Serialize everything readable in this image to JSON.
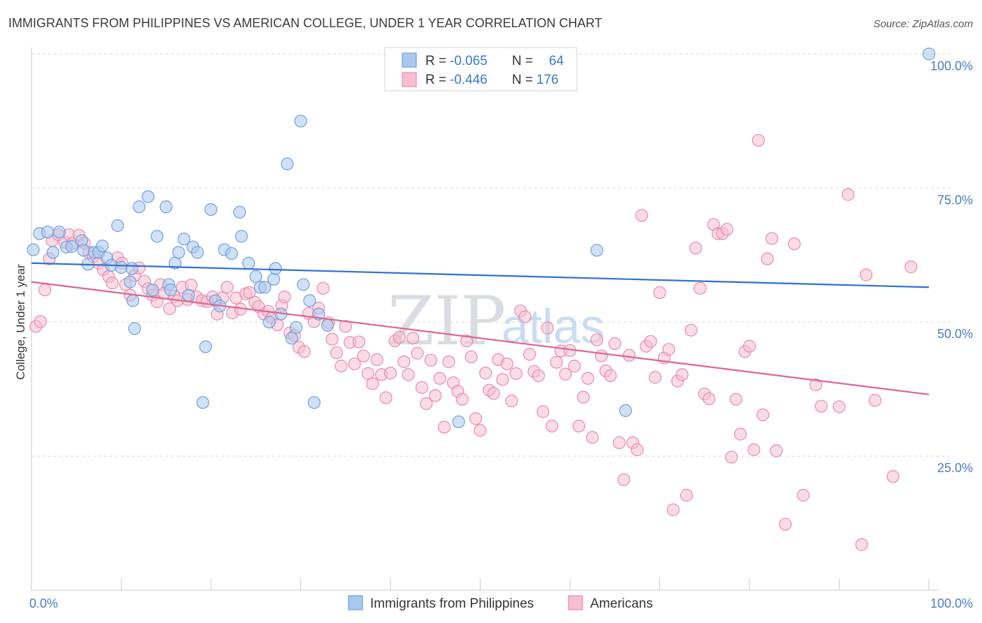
{
  "title": "IMMIGRANTS FROM PHILIPPINES VS AMERICAN COLLEGE, UNDER 1 YEAR CORRELATION CHART",
  "source": "Source: ZipAtlas.com",
  "watermark": {
    "zip": "ZIP",
    "atlas": "atlas"
  },
  "legend_box": {
    "rows": [
      {
        "r_label": "R = ",
        "r_value": "-0.065",
        "n_label": "N = ",
        "n_value": "64"
      },
      {
        "r_label": "R = ",
        "r_value": "-0.446",
        "n_label": "N = ",
        "n_value": "176"
      }
    ]
  },
  "bottom_legend": {
    "items": [
      "Immigrants from Philippines",
      "Americans"
    ]
  },
  "colors": {
    "blue_fill": "#a9c8ee",
    "blue_stroke": "#6f9fdc",
    "blue_line": "#2f6fd0",
    "pink_fill": "#f6bfd0",
    "pink_stroke": "#e98aaa",
    "pink_line": "#e0638f",
    "grid": "#d5d8de",
    "axis_text": "#4a7cc7"
  },
  "chart_data": {
    "type": "scatter",
    "title": "IMMIGRANTS FROM PHILIPPINES VS AMERICAN COLLEGE, UNDER 1 YEAR CORRELATION CHART",
    "xlabel": "",
    "ylabel": "College, Under 1 year",
    "xlim": [
      0,
      100
    ],
    "ylim": [
      0,
      102
    ],
    "x_tick_labels": [
      "0.0%",
      "100.0%"
    ],
    "y_ticks": [
      25,
      50,
      75,
      100
    ],
    "y_tick_labels": [
      "25.0%",
      "50.0%",
      "75.0%",
      "100.0%"
    ],
    "grid": "horizontal dashed",
    "legend_placement": "top-center",
    "series": [
      {
        "name": "Immigrants from Philippines",
        "R": -0.065,
        "N": 64,
        "trend": {
          "x0": 0,
          "y0": 61.0,
          "x1": 100,
          "y1": 56.5
        },
        "points": [
          [
            0.2,
            63.5
          ],
          [
            0.9,
            66.5
          ],
          [
            1.8,
            66.8
          ],
          [
            2.4,
            63
          ],
          [
            3.1,
            66.8
          ],
          [
            3.9,
            64
          ],
          [
            4.5,
            64.1
          ],
          [
            5.6,
            65.2
          ],
          [
            5.8,
            63.4
          ],
          [
            6.3,
            60.8
          ],
          [
            7.0,
            63
          ],
          [
            7.5,
            63
          ],
          [
            7.9,
            64.2
          ],
          [
            8.4,
            62
          ],
          [
            8.9,
            60.6
          ],
          [
            9.6,
            68
          ],
          [
            10,
            60.2
          ],
          [
            11,
            57.5
          ],
          [
            11.2,
            60
          ],
          [
            11.3,
            54
          ],
          [
            11.5,
            48.8
          ],
          [
            12,
            71.5
          ],
          [
            13,
            73.4
          ],
          [
            13.5,
            56
          ],
          [
            14,
            66
          ],
          [
            15,
            71.5
          ],
          [
            15.3,
            57
          ],
          [
            15.5,
            56
          ],
          [
            16,
            61
          ],
          [
            16.4,
            63
          ],
          [
            17,
            65.5
          ],
          [
            17.5,
            55
          ],
          [
            18,
            64
          ],
          [
            18.5,
            63
          ],
          [
            19.1,
            35
          ],
          [
            19.4,
            45.4
          ],
          [
            20,
            71
          ],
          [
            20.5,
            54
          ],
          [
            21,
            53
          ],
          [
            21.5,
            63.5
          ],
          [
            22.3,
            62.8
          ],
          [
            23.2,
            70.5
          ],
          [
            23.4,
            66
          ],
          [
            24.2,
            61
          ],
          [
            25,
            58.5
          ],
          [
            25.5,
            56.5
          ],
          [
            26,
            56.5
          ],
          [
            26.5,
            50
          ],
          [
            27,
            58
          ],
          [
            27.2,
            60
          ],
          [
            27.8,
            51.5
          ],
          [
            28.5,
            79.5
          ],
          [
            29,
            47
          ],
          [
            29.5,
            49
          ],
          [
            30,
            87.5
          ],
          [
            30.3,
            57
          ],
          [
            31,
            54
          ],
          [
            31.5,
            35
          ],
          [
            32,
            51.5
          ],
          [
            33,
            49.4
          ],
          [
            47.6,
            31.4
          ],
          [
            63,
            63.4
          ],
          [
            66.2,
            33.5
          ],
          [
            100,
            100
          ]
        ]
      },
      {
        "name": "Americans",
        "R": -0.446,
        "N": 176,
        "trend": {
          "x0": 0,
          "y0": 57.5,
          "x1": 100,
          "y1": 36.5
        },
        "points": [
          [
            0.5,
            49.2
          ],
          [
            1,
            50.1
          ],
          [
            1.5,
            56
          ],
          [
            2,
            61.8
          ],
          [
            2.3,
            65.2
          ],
          [
            3,
            66.3
          ],
          [
            3.7,
            64.9
          ],
          [
            4.2,
            66.3
          ],
          [
            4.6,
            64.7
          ],
          [
            5.3,
            66.2
          ],
          [
            5.9,
            64.7
          ],
          [
            6.4,
            63
          ],
          [
            6.9,
            62.2
          ],
          [
            7.5,
            61
          ],
          [
            8,
            59.8
          ],
          [
            8.6,
            58.5
          ],
          [
            9,
            57.3
          ],
          [
            9.6,
            62
          ],
          [
            10.1,
            61
          ],
          [
            10.5,
            57
          ],
          [
            11,
            55
          ],
          [
            11.5,
            58.7
          ],
          [
            12,
            60.1
          ],
          [
            12.6,
            57.6
          ],
          [
            13,
            56.2
          ],
          [
            13.5,
            55
          ],
          [
            14,
            53.8
          ],
          [
            14.4,
            57
          ],
          [
            14.8,
            55.4
          ],
          [
            15.4,
            52.5
          ],
          [
            15.9,
            54.8
          ],
          [
            16.3,
            54
          ],
          [
            16.8,
            56.5
          ],
          [
            17.4,
            54.2
          ],
          [
            17.8,
            56.9
          ],
          [
            18.4,
            54.7
          ],
          [
            19,
            54
          ],
          [
            19.6,
            53.8
          ],
          [
            20.2,
            54.7
          ],
          [
            20.7,
            51.5
          ],
          [
            21.3,
            54.5
          ],
          [
            21.8,
            56.5
          ],
          [
            22.4,
            51.7
          ],
          [
            22.8,
            54.5
          ],
          [
            23.3,
            52.4
          ],
          [
            23.9,
            55.3
          ],
          [
            24.3,
            55.5
          ],
          [
            24.9,
            53.7
          ],
          [
            25.3,
            52.9
          ],
          [
            25.9,
            51.5
          ],
          [
            26.4,
            52
          ],
          [
            26.8,
            50.8
          ],
          [
            27.4,
            49.5
          ],
          [
            27.9,
            53.1
          ],
          [
            28.2,
            54.7
          ],
          [
            28.8,
            48
          ],
          [
            29.3,
            47.5
          ],
          [
            29.8,
            45.3
          ],
          [
            30.4,
            44.5
          ],
          [
            30.9,
            51.6
          ],
          [
            31.5,
            50.1
          ],
          [
            32,
            52.6
          ],
          [
            32.5,
            56.3
          ],
          [
            33.1,
            49.9
          ],
          [
            33.5,
            46.8
          ],
          [
            34,
            44.3
          ],
          [
            34.5,
            41.8
          ],
          [
            35,
            49.2
          ],
          [
            35.5,
            46.2
          ],
          [
            36,
            42.2
          ],
          [
            36.5,
            46.3
          ],
          [
            37,
            43.7
          ],
          [
            37.5,
            40.4
          ],
          [
            38,
            38.5
          ],
          [
            38.5,
            43
          ],
          [
            39,
            40.2
          ],
          [
            39.5,
            35.9
          ],
          [
            40,
            40.5
          ],
          [
            40.5,
            46.5
          ],
          [
            41,
            47.2
          ],
          [
            41.5,
            42.6
          ],
          [
            42,
            40.2
          ],
          [
            42.5,
            47
          ],
          [
            43,
            44.2
          ],
          [
            43.5,
            37.8
          ],
          [
            44,
            34.8
          ],
          [
            44.5,
            42.9
          ],
          [
            45,
            36.3
          ],
          [
            45.5,
            39.5
          ],
          [
            46,
            30.4
          ],
          [
            46.5,
            42.6
          ],
          [
            47,
            38.7
          ],
          [
            47.5,
            37.1
          ],
          [
            48,
            35.6
          ],
          [
            48.5,
            46.5
          ],
          [
            49,
            43.5
          ],
          [
            49.5,
            32
          ],
          [
            50,
            29.8
          ],
          [
            50.6,
            40.5
          ],
          [
            51,
            37.3
          ],
          [
            51.5,
            36.7
          ],
          [
            52,
            43
          ],
          [
            52.5,
            39.3
          ],
          [
            53,
            42.2
          ],
          [
            53.5,
            35.3
          ],
          [
            54,
            40.4
          ],
          [
            54.5,
            52.1
          ],
          [
            55,
            51
          ],
          [
            55.5,
            44
          ],
          [
            56,
            40.8
          ],
          [
            56.5,
            40
          ],
          [
            57,
            33.3
          ],
          [
            57.5,
            48.9
          ],
          [
            58,
            30.6
          ],
          [
            58.5,
            42.5
          ],
          [
            59,
            44.6
          ],
          [
            59.5,
            40.3
          ],
          [
            60,
            44.7
          ],
          [
            60.5,
            41.8
          ],
          [
            61,
            30.6
          ],
          [
            61.5,
            36
          ],
          [
            62,
            39.5
          ],
          [
            62.5,
            28.5
          ],
          [
            63,
            46.7
          ],
          [
            63.5,
            43.7
          ],
          [
            64,
            40.9
          ],
          [
            64.5,
            40
          ],
          [
            65,
            46
          ],
          [
            65.5,
            27.5
          ],
          [
            66,
            20.6
          ],
          [
            66.6,
            43.8
          ],
          [
            67,
            27.5
          ],
          [
            67.5,
            26.2
          ],
          [
            68,
            69.9
          ],
          [
            68.5,
            45.5
          ],
          [
            69,
            46.4
          ],
          [
            69.5,
            39.7
          ],
          [
            70,
            55.5
          ],
          [
            70.5,
            43.3
          ],
          [
            71,
            44.9
          ],
          [
            71.5,
            15
          ],
          [
            72,
            39
          ],
          [
            72.5,
            40.2
          ],
          [
            73,
            17.7
          ],
          [
            73.5,
            48.5
          ],
          [
            74,
            63.8
          ],
          [
            74.5,
            56.3
          ],
          [
            75,
            36.6
          ],
          [
            75.5,
            35.7
          ],
          [
            76,
            68.2
          ],
          [
            76.5,
            66.5
          ],
          [
            77,
            66.5
          ],
          [
            77.5,
            67.3
          ],
          [
            78,
            24.8
          ],
          [
            78.5,
            35.6
          ],
          [
            79,
            29.1
          ],
          [
            79.5,
            44.5
          ],
          [
            80,
            45.5
          ],
          [
            80.5,
            26.2
          ],
          [
            81,
            83.9
          ],
          [
            81.5,
            32.7
          ],
          [
            82,
            61.8
          ],
          [
            82.5,
            65.6
          ],
          [
            83,
            26
          ],
          [
            84,
            12.3
          ],
          [
            85,
            64.6
          ],
          [
            86,
            17.7
          ],
          [
            87.4,
            38.3
          ],
          [
            88,
            34.3
          ],
          [
            90,
            34.2
          ],
          [
            91,
            73.8
          ],
          [
            92.5,
            8.5
          ],
          [
            93,
            58.8
          ],
          [
            94,
            35.4
          ],
          [
            96,
            21.2
          ],
          [
            98,
            60.3
          ]
        ]
      }
    ]
  }
}
